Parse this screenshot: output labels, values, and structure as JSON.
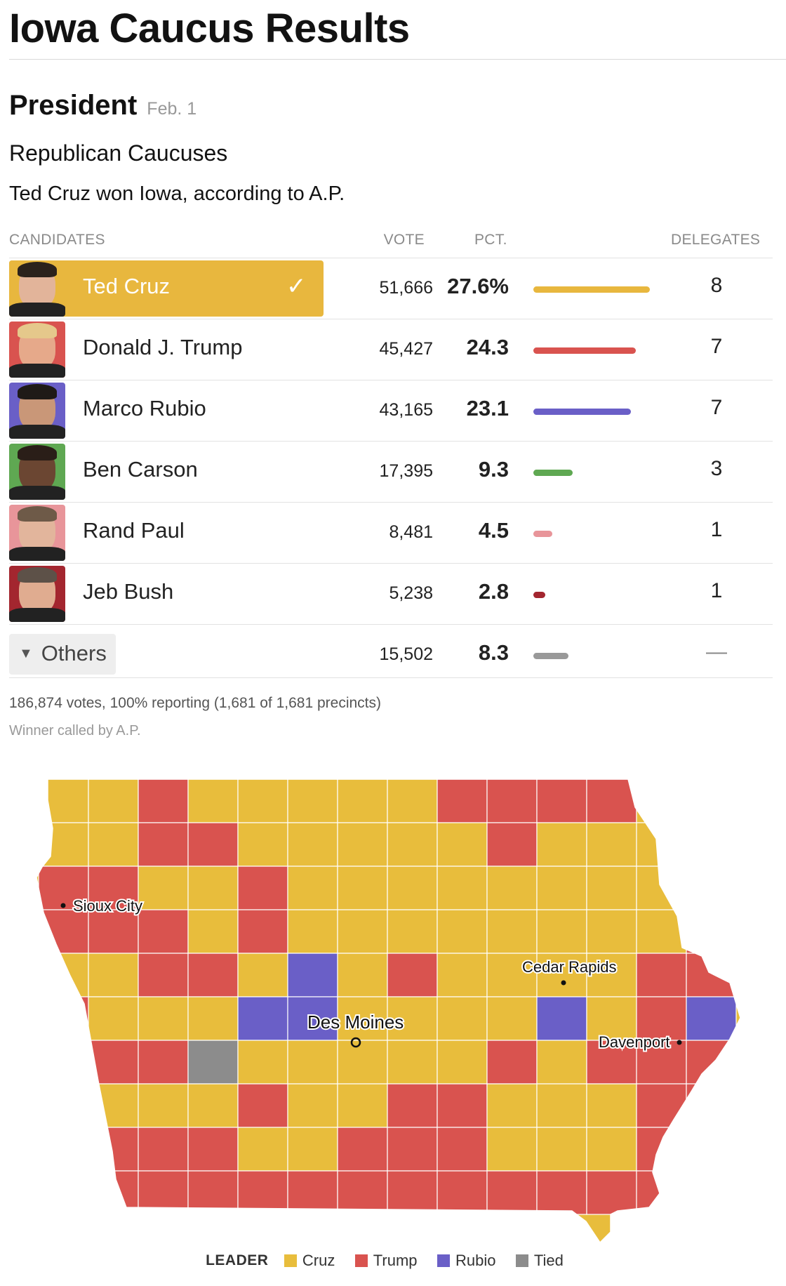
{
  "page_title": "Iowa Caucus Results",
  "race": {
    "office": "President",
    "date": "Feb. 1",
    "party": "Republican Caucuses",
    "summary": "Ted Cruz won Iowa, according to A.P."
  },
  "table": {
    "headers": {
      "candidates": "CANDIDATES",
      "vote": "VOTE",
      "pct": "PCT.",
      "delegates": "DELEGATES"
    },
    "candidates": [
      {
        "name": "Ted Cruz",
        "vote": "51,666",
        "pct": "27.6%",
        "pct_value": 27.6,
        "delegates": "8",
        "color": "#e8b73e",
        "winner": true
      },
      {
        "name": "Donald J. Trump",
        "vote": "45,427",
        "pct": "24.3",
        "pct_value": 24.3,
        "delegates": "7",
        "color": "#d9534f",
        "winner": false
      },
      {
        "name": "Marco Rubio",
        "vote": "43,165",
        "pct": "23.1",
        "pct_value": 23.1,
        "delegates": "7",
        "color": "#6a5fc7",
        "winner": false
      },
      {
        "name": "Ben Carson",
        "vote": "17,395",
        "pct": "9.3",
        "pct_value": 9.3,
        "delegates": "3",
        "color": "#5fa852",
        "winner": false
      },
      {
        "name": "Rand Paul",
        "vote": "8,481",
        "pct": "4.5",
        "pct_value": 4.5,
        "delegates": "1",
        "color": "#e8959a",
        "winner": false
      },
      {
        "name": "Jeb Bush",
        "vote": "5,238",
        "pct": "2.8",
        "pct_value": 2.8,
        "delegates": "1",
        "color": "#a3262f",
        "winner": false
      }
    ],
    "others": {
      "label": "Others",
      "vote": "15,502",
      "pct": "8.3",
      "pct_value": 8.3,
      "delegates": "—",
      "color": "#999999"
    }
  },
  "footnote": {
    "reporting": "186,874 votes, 100% reporting (1,681 of 1,681 precincts)",
    "called": "Winner called by A.P."
  },
  "map": {
    "colors": {
      "cruz": "#e8bd3c",
      "trump": "#d9534f",
      "rubio": "#6a5fc7",
      "tied": "#8c8c8c"
    },
    "cities": [
      {
        "name": "Sioux City"
      },
      {
        "name": "Cedar Rapids"
      },
      {
        "name": "Des Moines"
      },
      {
        "name": "Davenport"
      }
    ]
  },
  "legend": {
    "title": "LEADER",
    "items": [
      {
        "label": "Cruz",
        "color": "#e8bd3c"
      },
      {
        "label": "Trump",
        "color": "#d9534f"
      },
      {
        "label": "Rubio",
        "color": "#6a5fc7"
      },
      {
        "label": "Tied",
        "color": "#8c8c8c"
      }
    ]
  }
}
